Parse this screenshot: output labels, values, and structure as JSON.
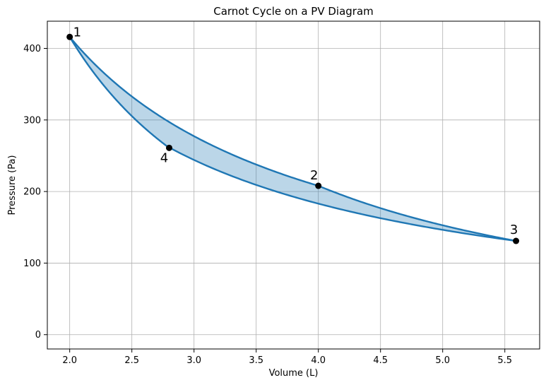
{
  "chart_data": {
    "type": "line",
    "title": "Carnot Cycle on a PV Diagram",
    "xlabel": "Volume (L)",
    "ylabel": "Pressure (Pa)",
    "xlim": [
      1.82,
      5.78
    ],
    "ylim": [
      -20,
      438
    ],
    "xticks": [
      2.0,
      2.5,
      3.0,
      3.5,
      4.0,
      4.5,
      5.0,
      5.5
    ],
    "yticks": [
      0,
      100,
      200,
      300,
      400
    ],
    "grid": true,
    "line_color": "#1f77b4",
    "fill_color": "#1f77b4",
    "fill_opacity": 0.3,
    "marker_color": "#000000",
    "points": [
      {
        "label": "1",
        "x": 2.0,
        "y": 416
      },
      {
        "label": "2",
        "x": 4.0,
        "y": 208
      },
      {
        "label": "3",
        "x": 5.59,
        "y": 131
      },
      {
        "label": "4",
        "x": 2.8,
        "y": 261
      }
    ],
    "curves": [
      {
        "from": "1",
        "to": "2",
        "process": "isothermal"
      },
      {
        "from": "2",
        "to": "3",
        "process": "adiabatic",
        "gamma": 1.4
      },
      {
        "from": "3",
        "to": "4",
        "process": "isothermal"
      },
      {
        "from": "4",
        "to": "1",
        "process": "adiabatic",
        "gamma": 1.4
      }
    ]
  }
}
